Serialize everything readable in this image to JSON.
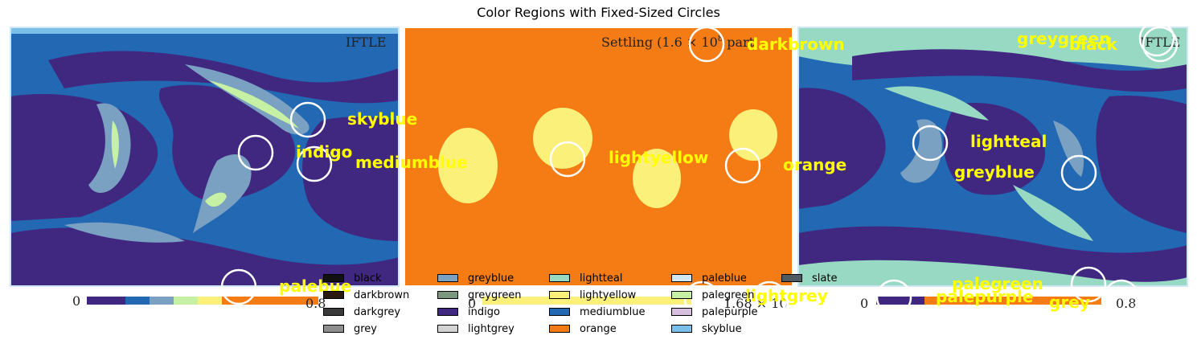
{
  "title": "Color Regions with Fixed-Sized Circles",
  "panels": {
    "left": {
      "header": "IFTLE",
      "cbar_min": "0",
      "cbar_max": "0.8"
    },
    "middle": {
      "header": "Settling (1.6 × 10",
      "header_exp": "8",
      "header_tail": " part",
      "cbar_min": "0",
      "cbar_max": "1.68 × 10"
    },
    "right": {
      "header": "IFTLE",
      "cbar_min": "0",
      "cbar_max": "0.8"
    }
  },
  "chart_data": {
    "type": "region-map",
    "title": "Color Regions with Fixed-Sized Circles",
    "circle_labels": [
      {
        "text": "skyblue",
        "color": "#ffff00"
      },
      {
        "text": "indigo",
        "color": "#ffff00"
      },
      {
        "text": "mediumblue",
        "color": "#ffff00"
      },
      {
        "text": "palebue",
        "color": "#ffff00"
      },
      {
        "text": "darkbrown",
        "color": "#ffff00"
      },
      {
        "text": "lightyellow",
        "color": "#ffff00"
      },
      {
        "text": "orange",
        "color": "#ffff00"
      },
      {
        "text": "lightgrey",
        "color": "#ffff00"
      },
      {
        "text": "greygreen",
        "color": "#ffff00"
      },
      {
        "text": "black",
        "color": "#ffff00"
      },
      {
        "text": "lightteal",
        "color": "#ffff00"
      },
      {
        "text": "greyblue",
        "color": "#ffff00"
      },
      {
        "text": "palegreen",
        "color": "#ffff00"
      },
      {
        "text": "palepurple",
        "color": "#ffff00"
      },
      {
        "text": "grey",
        "color": "#ffff00"
      }
    ],
    "legend": [
      {
        "name": "black",
        "color": "#111111"
      },
      {
        "name": "darkbrown",
        "color": "#2b1a0e"
      },
      {
        "name": "darkgrey",
        "color": "#3a3a3a"
      },
      {
        "name": "grey",
        "color": "#8e8e8e"
      },
      {
        "name": "greyblue",
        "color": "#7aa0c2"
      },
      {
        "name": "greygreen",
        "color": "#7b977d"
      },
      {
        "name": "indigo",
        "color": "#402880"
      },
      {
        "name": "lightgrey",
        "color": "#d3d3d3"
      },
      {
        "name": "lightteal",
        "color": "#98d9c3"
      },
      {
        "name": "lightyellow",
        "color": "#fbf07a"
      },
      {
        "name": "mediumblue",
        "color": "#2368b3"
      },
      {
        "name": "orange",
        "color": "#f57c14"
      },
      {
        "name": "paleblue",
        "color": "#d0e7f5"
      },
      {
        "name": "palegreen",
        "color": "#c6f0a4"
      },
      {
        "name": "palepurple",
        "color": "#d6bfdf"
      },
      {
        "name": "skyblue",
        "color": "#7bc0ea"
      },
      {
        "name": "slate",
        "color": "#4f5b63"
      }
    ],
    "legend_placement": "bottom-center",
    "circle_color": "#ffffff"
  }
}
